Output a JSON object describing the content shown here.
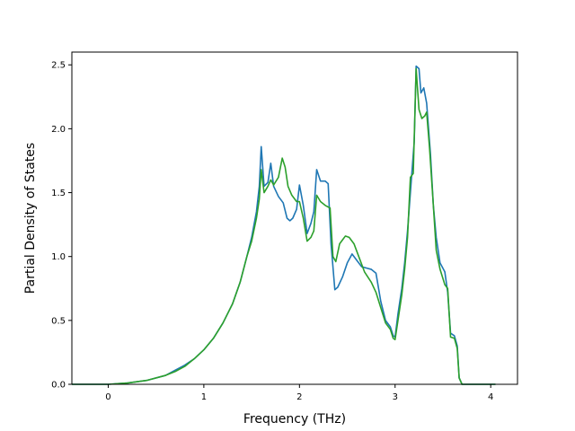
{
  "chart_data": {
    "type": "line",
    "title": "",
    "xlabel": "Frequency (THz)",
    "ylabel": "Partial Density of States",
    "xlim": [
      -0.38,
      4.28
    ],
    "ylim": [
      0.0,
      2.6
    ],
    "xticks": [
      0,
      1,
      2,
      3,
      4
    ],
    "xtick_labels": [
      "0",
      "1",
      "2",
      "3",
      "4"
    ],
    "yticks": [
      0.0,
      0.5,
      1.0,
      1.5,
      2.0,
      2.5
    ],
    "ytick_labels": [
      "0.0",
      "0.5",
      "1.0",
      "1.5",
      "2.0",
      "2.5"
    ],
    "grid": false,
    "legend": "none",
    "series": [
      {
        "color": "#1f77b4",
        "points": [
          [
            -0.38,
            0.0
          ],
          [
            0.0,
            0.0
          ],
          [
            0.2,
            0.01
          ],
          [
            0.4,
            0.03
          ],
          [
            0.6,
            0.07
          ],
          [
            0.7,
            0.11
          ],
          [
            0.8,
            0.15
          ],
          [
            0.9,
            0.2
          ],
          [
            1.0,
            0.27
          ],
          [
            1.1,
            0.36
          ],
          [
            1.2,
            0.48
          ],
          [
            1.3,
            0.63
          ],
          [
            1.38,
            0.8
          ],
          [
            1.45,
            1.0
          ],
          [
            1.5,
            1.15
          ],
          [
            1.55,
            1.35
          ],
          [
            1.58,
            1.55
          ],
          [
            1.6,
            1.86
          ],
          [
            1.63,
            1.55
          ],
          [
            1.67,
            1.58
          ],
          [
            1.7,
            1.73
          ],
          [
            1.73,
            1.55
          ],
          [
            1.78,
            1.47
          ],
          [
            1.83,
            1.42
          ],
          [
            1.87,
            1.3
          ],
          [
            1.9,
            1.28
          ],
          [
            1.93,
            1.3
          ],
          [
            1.97,
            1.37
          ],
          [
            2.0,
            1.56
          ],
          [
            2.04,
            1.4
          ],
          [
            2.08,
            1.18
          ],
          [
            2.12,
            1.26
          ],
          [
            2.15,
            1.35
          ],
          [
            2.18,
            1.68
          ],
          [
            2.22,
            1.59
          ],
          [
            2.27,
            1.59
          ],
          [
            2.3,
            1.57
          ],
          [
            2.33,
            1.1
          ],
          [
            2.37,
            0.74
          ],
          [
            2.4,
            0.76
          ],
          [
            2.45,
            0.84
          ],
          [
            2.5,
            0.95
          ],
          [
            2.55,
            1.02
          ],
          [
            2.6,
            0.97
          ],
          [
            2.65,
            0.92
          ],
          [
            2.7,
            0.91
          ],
          [
            2.75,
            0.9
          ],
          [
            2.8,
            0.87
          ],
          [
            2.85,
            0.65
          ],
          [
            2.9,
            0.5
          ],
          [
            2.95,
            0.45
          ],
          [
            2.98,
            0.38
          ],
          [
            3.0,
            0.37
          ],
          [
            3.03,
            0.55
          ],
          [
            3.07,
            0.75
          ],
          [
            3.1,
            0.95
          ],
          [
            3.13,
            1.2
          ],
          [
            3.17,
            1.6
          ],
          [
            3.2,
            1.9
          ],
          [
            3.22,
            2.49
          ],
          [
            3.25,
            2.47
          ],
          [
            3.27,
            2.28
          ],
          [
            3.3,
            2.32
          ],
          [
            3.33,
            2.2
          ],
          [
            3.37,
            1.8
          ],
          [
            3.4,
            1.4
          ],
          [
            3.43,
            1.15
          ],
          [
            3.47,
            0.95
          ],
          [
            3.52,
            0.88
          ],
          [
            3.55,
            0.72
          ],
          [
            3.58,
            0.4
          ],
          [
            3.62,
            0.38
          ],
          [
            3.65,
            0.3
          ],
          [
            3.67,
            0.05
          ],
          [
            3.7,
            0.0
          ],
          [
            4.05,
            0.0
          ]
        ]
      },
      {
        "color": "#2ca02c",
        "points": [
          [
            -0.38,
            0.0
          ],
          [
            0.0,
            0.0
          ],
          [
            0.2,
            0.01
          ],
          [
            0.4,
            0.03
          ],
          [
            0.6,
            0.07
          ],
          [
            0.7,
            0.1
          ],
          [
            0.8,
            0.14
          ],
          [
            0.9,
            0.2
          ],
          [
            1.0,
            0.27
          ],
          [
            1.1,
            0.36
          ],
          [
            1.2,
            0.48
          ],
          [
            1.3,
            0.63
          ],
          [
            1.38,
            0.8
          ],
          [
            1.45,
            1.0
          ],
          [
            1.5,
            1.12
          ],
          [
            1.55,
            1.3
          ],
          [
            1.58,
            1.45
          ],
          [
            1.6,
            1.68
          ],
          [
            1.63,
            1.5
          ],
          [
            1.67,
            1.55
          ],
          [
            1.7,
            1.6
          ],
          [
            1.73,
            1.56
          ],
          [
            1.78,
            1.62
          ],
          [
            1.82,
            1.77
          ],
          [
            1.85,
            1.7
          ],
          [
            1.88,
            1.55
          ],
          [
            1.92,
            1.48
          ],
          [
            1.97,
            1.43
          ],
          [
            2.0,
            1.43
          ],
          [
            2.04,
            1.3
          ],
          [
            2.08,
            1.12
          ],
          [
            2.12,
            1.15
          ],
          [
            2.15,
            1.2
          ],
          [
            2.18,
            1.48
          ],
          [
            2.22,
            1.43
          ],
          [
            2.27,
            1.4
          ],
          [
            2.32,
            1.38
          ],
          [
            2.35,
            1.0
          ],
          [
            2.38,
            0.96
          ],
          [
            2.42,
            1.1
          ],
          [
            2.48,
            1.16
          ],
          [
            2.52,
            1.15
          ],
          [
            2.57,
            1.1
          ],
          [
            2.62,
            1.0
          ],
          [
            2.68,
            0.88
          ],
          [
            2.75,
            0.8
          ],
          [
            2.8,
            0.72
          ],
          [
            2.85,
            0.6
          ],
          [
            2.9,
            0.48
          ],
          [
            2.95,
            0.43
          ],
          [
            2.98,
            0.36
          ],
          [
            3.0,
            0.35
          ],
          [
            3.03,
            0.5
          ],
          [
            3.07,
            0.7
          ],
          [
            3.1,
            0.9
          ],
          [
            3.13,
            1.15
          ],
          [
            3.16,
            1.62
          ],
          [
            3.19,
            1.65
          ],
          [
            3.22,
            2.47
          ],
          [
            3.25,
            2.15
          ],
          [
            3.28,
            2.08
          ],
          [
            3.31,
            2.1
          ],
          [
            3.33,
            2.13
          ],
          [
            3.36,
            1.85
          ],
          [
            3.4,
            1.4
          ],
          [
            3.43,
            1.05
          ],
          [
            3.47,
            0.9
          ],
          [
            3.52,
            0.78
          ],
          [
            3.55,
            0.75
          ],
          [
            3.58,
            0.37
          ],
          [
            3.62,
            0.36
          ],
          [
            3.65,
            0.28
          ],
          [
            3.67,
            0.05
          ],
          [
            3.7,
            0.0
          ],
          [
            4.05,
            0.0
          ]
        ]
      }
    ]
  }
}
